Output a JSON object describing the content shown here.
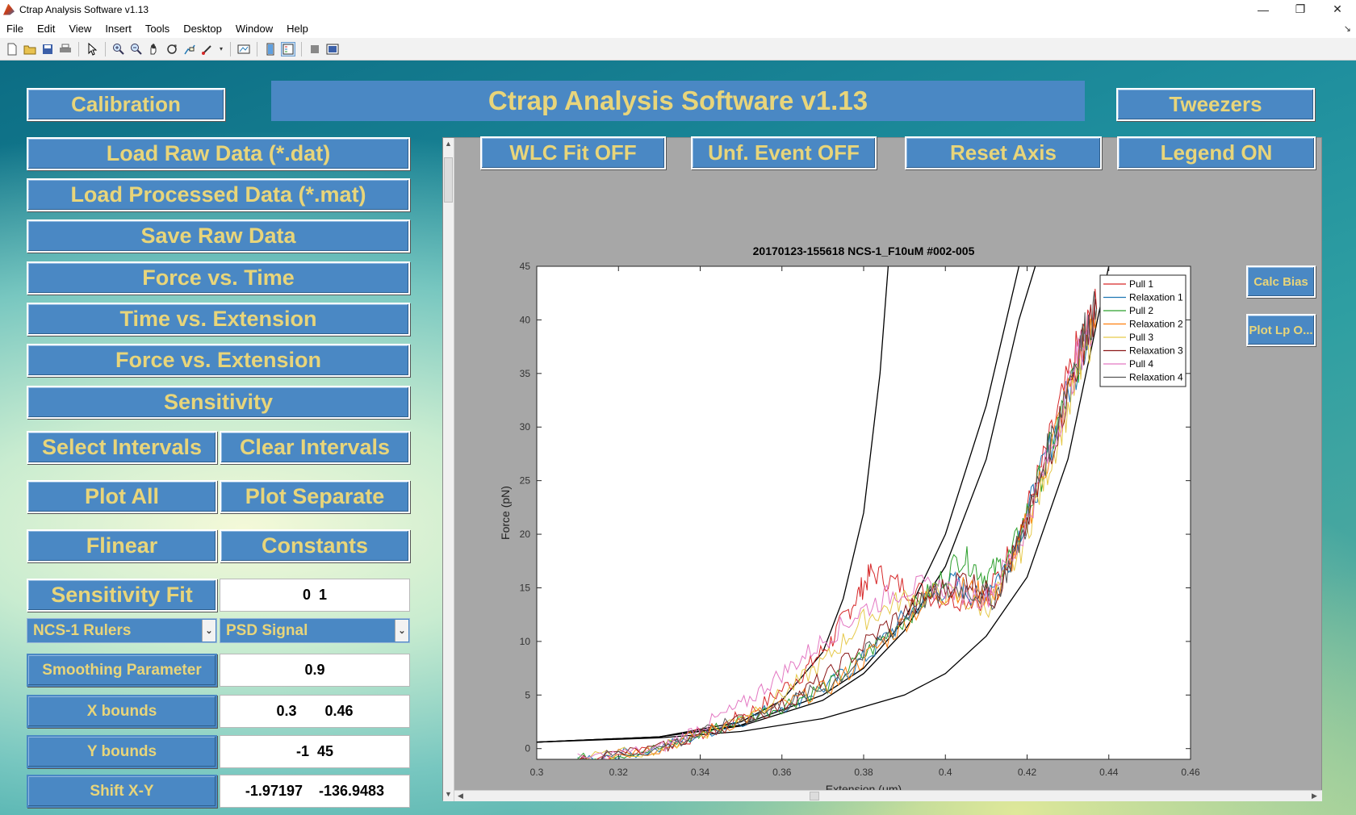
{
  "window": {
    "title": "Ctrap Analysis Software v1.13",
    "minimize_glyph": "—",
    "restore_glyph": "❐",
    "close_glyph": "✕"
  },
  "menu": [
    "File",
    "Edit",
    "View",
    "Insert",
    "Tools",
    "Desktop",
    "Window",
    "Help"
  ],
  "toolbar_icons": [
    "new-file-icon",
    "open-folder-icon",
    "save-icon",
    "print-icon",
    "pointer-icon",
    "zoom-in-icon",
    "zoom-out-icon",
    "pan-icon",
    "rotate-icon",
    "data-cursor-icon",
    "brush-icon",
    "link-plot-icon",
    "colorbar-icon",
    "legend-icon",
    "hide-plot-tools-icon",
    "show-plot-tools-icon"
  ],
  "banner": "Ctrap Analysis Software v1.13",
  "buttons": {
    "calibration": "Calibration",
    "tweezers": "Tweezers",
    "load_raw": "Load Raw Data (*.dat)",
    "load_processed": "Load Processed Data (*.mat)",
    "save_raw": "Save Raw Data",
    "force_time": "Force vs. Time",
    "time_extension": "Time vs. Extension",
    "force_extension": "Force vs. Extension",
    "sensitivity": "Sensitivity",
    "select_intervals": "Select Intervals",
    "clear_intervals": "Clear Intervals",
    "plot_all": "Plot All",
    "plot_separate": "Plot Separate",
    "flinear": "Flinear",
    "constants": "Constants",
    "sensitivity_fit": "Sensitivity Fit",
    "wlc_fit": "WLC Fit OFF",
    "unf_event": "Unf. Event OFF",
    "reset_axis": "Reset Axis",
    "legend": "Legend ON",
    "calc_bias": "Calc Bias",
    "plot_lp": "Plot Lp O..."
  },
  "fields": {
    "sensitivity_fit_value": "0  1",
    "smoothing_label": "Smoothing Parameter",
    "smoothing_value": "0.9",
    "x_bounds_label": "X bounds",
    "x_bounds_value": "0.3       0.46",
    "y_bounds_label": "Y bounds",
    "y_bounds_value": "-1  45",
    "shift_label": "Shift X-Y",
    "shift_value": "-1.97197    -136.9483"
  },
  "selects": {
    "molecule": "NCS-1 Rulers",
    "signal": "PSD Signal"
  },
  "chart_data": {
    "type": "line",
    "title": "20170123-155618 NCS-1_F10uM #002-005",
    "xlabel": "Extension (μm)",
    "ylabel": "Force (pN)",
    "xlim": [
      0.3,
      0.46
    ],
    "ylim": [
      -1,
      45
    ],
    "xticks": [
      0.3,
      0.32,
      0.34,
      0.36,
      0.38,
      0.4,
      0.42,
      0.44,
      0.46
    ],
    "yticks": [
      0,
      5,
      10,
      15,
      20,
      25,
      30,
      35,
      40,
      45
    ],
    "legend_position": "top-right",
    "grid": false,
    "series": [
      {
        "name": "Pull 1",
        "color": "#d62728",
        "points": [
          [
            0.31,
            -1
          ],
          [
            0.33,
            0
          ],
          [
            0.345,
            2
          ],
          [
            0.355,
            4
          ],
          [
            0.365,
            7
          ],
          [
            0.372,
            10
          ],
          [
            0.378,
            14
          ],
          [
            0.382,
            16.5
          ],
          [
            0.39,
            15
          ],
          [
            0.4,
            14
          ],
          [
            0.41,
            14
          ],
          [
            0.418,
            20
          ],
          [
            0.425,
            28
          ],
          [
            0.432,
            37
          ],
          [
            0.437,
            41
          ]
        ]
      },
      {
        "name": "Relaxation 1",
        "color": "#1f77b4",
        "points": [
          [
            0.31,
            -1
          ],
          [
            0.33,
            0
          ],
          [
            0.345,
            2
          ],
          [
            0.36,
            4
          ],
          [
            0.372,
            6
          ],
          [
            0.382,
            9
          ],
          [
            0.392,
            13
          ],
          [
            0.402,
            15.5
          ],
          [
            0.408,
            14
          ],
          [
            0.415,
            17
          ],
          [
            0.422,
            24
          ],
          [
            0.429,
            32
          ],
          [
            0.436,
            40
          ]
        ]
      },
      {
        "name": "Pull 2",
        "color": "#2ca02c",
        "points": [
          [
            0.31,
            -1
          ],
          [
            0.33,
            0
          ],
          [
            0.345,
            2
          ],
          [
            0.36,
            4
          ],
          [
            0.372,
            6
          ],
          [
            0.384,
            10
          ],
          [
            0.395,
            14
          ],
          [
            0.404,
            18
          ],
          [
            0.41,
            16
          ],
          [
            0.416,
            18
          ],
          [
            0.423,
            25
          ],
          [
            0.43,
            33
          ],
          [
            0.436,
            40
          ]
        ]
      },
      {
        "name": "Relaxation 2",
        "color": "#ff7f0e",
        "points": [
          [
            0.31,
            -1
          ],
          [
            0.33,
            0
          ],
          [
            0.345,
            2
          ],
          [
            0.36,
            4
          ],
          [
            0.373,
            6
          ],
          [
            0.385,
            10
          ],
          [
            0.396,
            14
          ],
          [
            0.405,
            15
          ],
          [
            0.412,
            14
          ],
          [
            0.418,
            19
          ],
          [
            0.425,
            27
          ],
          [
            0.432,
            36
          ],
          [
            0.437,
            41
          ]
        ]
      },
      {
        "name": "Pull 3",
        "color": "#e6c94a",
        "points": [
          [
            0.31,
            -1
          ],
          [
            0.33,
            0
          ],
          [
            0.345,
            2
          ],
          [
            0.36,
            5
          ],
          [
            0.37,
            8
          ],
          [
            0.38,
            12
          ],
          [
            0.39,
            14
          ],
          [
            0.4,
            14.5
          ],
          [
            0.41,
            13
          ],
          [
            0.418,
            18
          ],
          [
            0.425,
            26
          ],
          [
            0.432,
            34
          ],
          [
            0.436,
            39
          ]
        ]
      },
      {
        "name": "Relaxation 3",
        "color": "#8c1a1a",
        "points": [
          [
            0.31,
            -1
          ],
          [
            0.33,
            0
          ],
          [
            0.345,
            2
          ],
          [
            0.36,
            4
          ],
          [
            0.372,
            7
          ],
          [
            0.384,
            11
          ],
          [
            0.395,
            14
          ],
          [
            0.405,
            16
          ],
          [
            0.412,
            14
          ],
          [
            0.419,
            20
          ],
          [
            0.426,
            28
          ],
          [
            0.433,
            37
          ],
          [
            0.437,
            41
          ]
        ]
      },
      {
        "name": "Pull 4",
        "color": "#e377c2",
        "points": [
          [
            0.31,
            -1
          ],
          [
            0.33,
            0
          ],
          [
            0.34,
            2
          ],
          [
            0.35,
            4
          ],
          [
            0.36,
            7
          ],
          [
            0.37,
            10
          ],
          [
            0.38,
            13
          ],
          [
            0.39,
            15
          ],
          [
            0.4,
            15
          ],
          [
            0.41,
            14
          ],
          [
            0.418,
            19
          ],
          [
            0.425,
            27
          ],
          [
            0.432,
            36
          ],
          [
            0.436,
            40
          ]
        ]
      },
      {
        "name": "Relaxation 4",
        "color": "#555555",
        "points": [
          [
            0.31,
            -1
          ],
          [
            0.33,
            0
          ],
          [
            0.345,
            2
          ],
          [
            0.36,
            4
          ],
          [
            0.372,
            6
          ],
          [
            0.384,
            10
          ],
          [
            0.395,
            14
          ],
          [
            0.404,
            15
          ],
          [
            0.412,
            14
          ],
          [
            0.419,
            20
          ],
          [
            0.426,
            29
          ],
          [
            0.433,
            38
          ],
          [
            0.437,
            41
          ]
        ]
      }
    ],
    "fit_curves": [
      {
        "color": "#000000",
        "points": [
          [
            0.3,
            0.6
          ],
          [
            0.33,
            1.1
          ],
          [
            0.35,
            2.5
          ],
          [
            0.36,
            4.5
          ],
          [
            0.37,
            9
          ],
          [
            0.375,
            14
          ],
          [
            0.38,
            22
          ],
          [
            0.384,
            35
          ],
          [
            0.386,
            45
          ]
        ]
      },
      {
        "color": "#000000",
        "points": [
          [
            0.3,
            0.6
          ],
          [
            0.33,
            1.1
          ],
          [
            0.35,
            2.2
          ],
          [
            0.37,
            5
          ],
          [
            0.38,
            7.5
          ],
          [
            0.39,
            12
          ],
          [
            0.4,
            20
          ],
          [
            0.41,
            32
          ],
          [
            0.418,
            45
          ]
        ]
      },
      {
        "color": "#000000",
        "points": [
          [
            0.3,
            0.6
          ],
          [
            0.33,
            1.1
          ],
          [
            0.35,
            2.1
          ],
          [
            0.37,
            4.5
          ],
          [
            0.38,
            7
          ],
          [
            0.39,
            11
          ],
          [
            0.4,
            17
          ],
          [
            0.41,
            27
          ],
          [
            0.418,
            40
          ],
          [
            0.422,
            45
          ]
        ]
      },
      {
        "color": "#000000",
        "points": [
          [
            0.3,
            0.6
          ],
          [
            0.33,
            1.0
          ],
          [
            0.35,
            1.6
          ],
          [
            0.37,
            2.8
          ],
          [
            0.39,
            5
          ],
          [
            0.4,
            7
          ],
          [
            0.41,
            10.5
          ],
          [
            0.42,
            16
          ],
          [
            0.43,
            27
          ],
          [
            0.44,
            45
          ]
        ]
      }
    ]
  }
}
